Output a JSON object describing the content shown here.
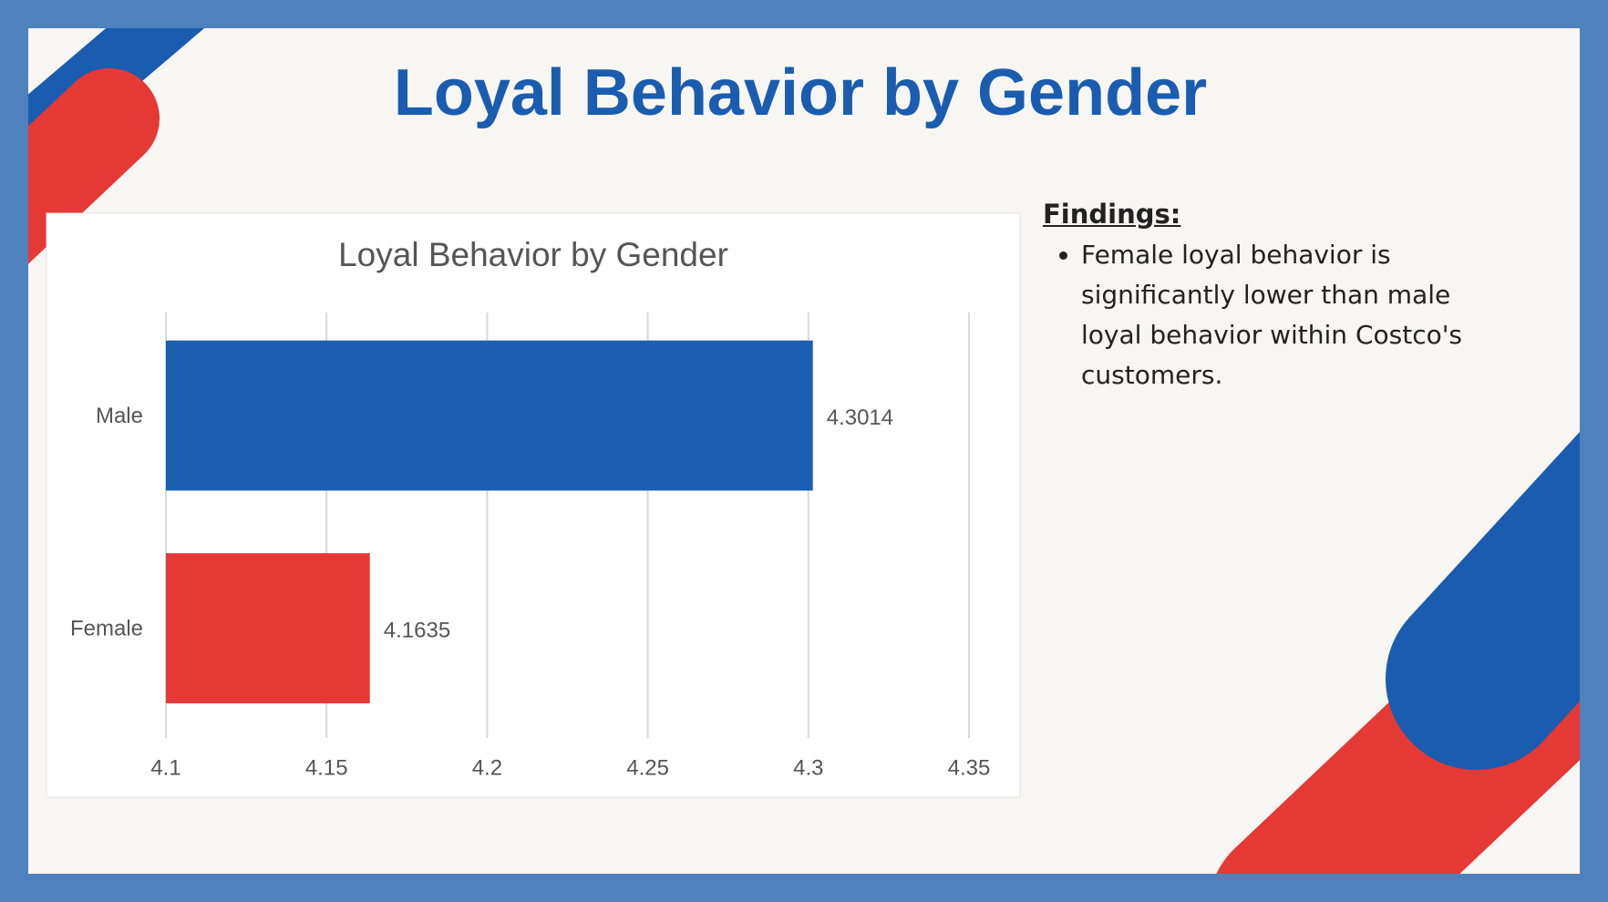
{
  "slide": {
    "title": "Loyal Behavior by Gender",
    "findings": {
      "heading": "Findings:",
      "bullets": [
        "Female loyal behavior is significantly lower than male loyal behavior within Costco's customers."
      ]
    }
  },
  "chart_data": {
    "type": "bar",
    "orientation": "horizontal",
    "title": "Loyal Behavior by Gender",
    "categories": [
      "Male",
      "Female"
    ],
    "values": [
      4.3014,
      4.1635
    ],
    "colors": [
      "#1a5fb0",
      "#e53935"
    ],
    "xlim": [
      4.1,
      4.35
    ],
    "xticks": [
      4.1,
      4.15,
      4.2,
      4.25,
      4.3,
      4.35
    ],
    "grid": true
  }
}
